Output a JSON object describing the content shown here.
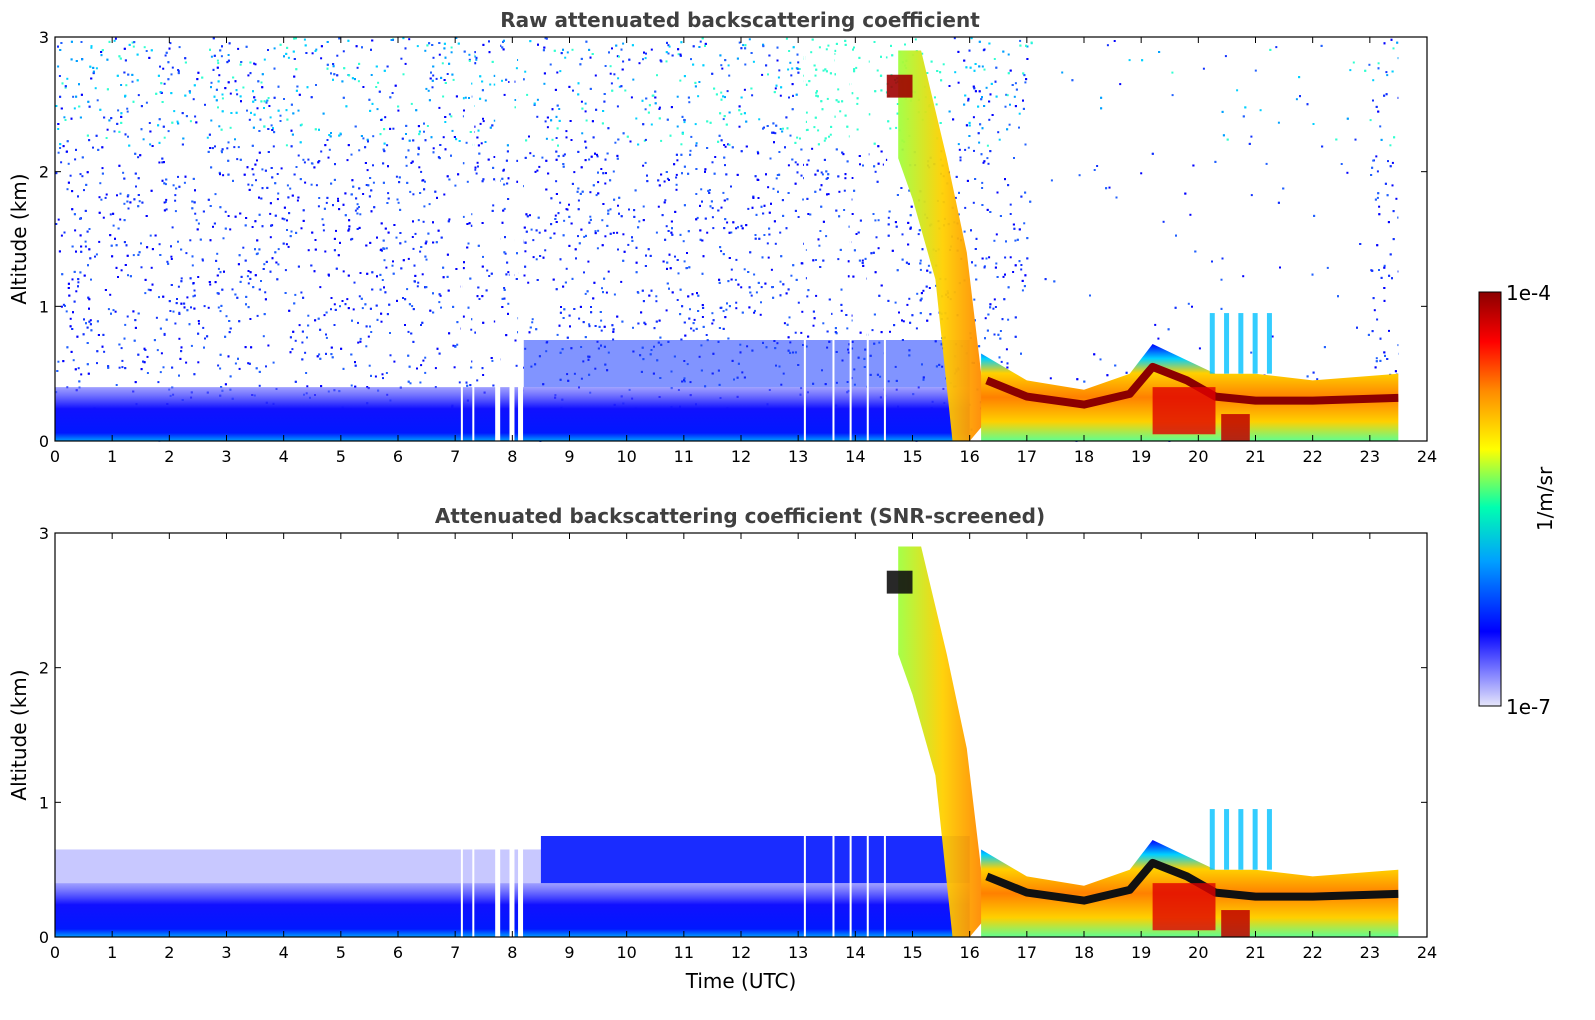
{
  "chart_data": [
    {
      "type": "heatmap",
      "title": "Raw attenuated backscattering coefficient",
      "xlabel": "",
      "ylabel": "Altitude (km)",
      "xlim": [
        0,
        24
      ],
      "ylim": [
        0,
        3
      ],
      "x_ticks": [
        "0",
        "1",
        "2",
        "3",
        "4",
        "5",
        "6",
        "7",
        "8",
        "9",
        "10",
        "11",
        "12",
        "13",
        "14",
        "15",
        "16",
        "17",
        "18",
        "19",
        "20",
        "21",
        "22",
        "23",
        "24"
      ],
      "y_ticks": [
        "0",
        "1",
        "2",
        "3"
      ],
      "features": [
        {
          "desc": "noise-dominated signal, sparse dots up to 3 km",
          "x_range": [
            0,
            23.5
          ],
          "y_range": [
            0,
            3
          ]
        },
        {
          "desc": "boundary layer (dense blue)",
          "x_range": [
            0,
            16
          ],
          "y_range": [
            0,
            0.4
          ]
        },
        {
          "desc": "data gaps",
          "x": [
            7.1,
            7.3,
            7.7,
            7.95,
            8.1
          ]
        },
        {
          "desc": "elevated aerosol/cloud layer descending",
          "x_range": [
            14.7,
            16.3
          ],
          "y_range": [
            0,
            3
          ]
        },
        {
          "desc": "strong layer top near 0.3 km",
          "x_range": [
            16.2,
            23.5
          ],
          "y_range": [
            0.2,
            0.5
          ]
        }
      ]
    },
    {
      "type": "heatmap",
      "title": "Attenuated backscattering coefficient (SNR-screened)",
      "xlabel": "Time (UTC)",
      "ylabel": "Altitude (km)",
      "xlim": [
        0,
        24
      ],
      "ylim": [
        0,
        3
      ],
      "x_ticks": [
        "0",
        "1",
        "2",
        "3",
        "4",
        "5",
        "6",
        "7",
        "8",
        "9",
        "10",
        "11",
        "12",
        "13",
        "14",
        "15",
        "16",
        "17",
        "18",
        "19",
        "20",
        "21",
        "22",
        "23",
        "24"
      ],
      "y_ticks": [
        "0",
        "1",
        "2",
        "3"
      ],
      "features": [
        {
          "desc": "boundary layer after screening",
          "x_range": [
            0,
            16
          ],
          "y_range": [
            0,
            0.8
          ]
        },
        {
          "desc": "elevated aerosol/cloud layer descending",
          "x_range": [
            14.7,
            16.3
          ],
          "y_range": [
            0,
            2.9
          ]
        },
        {
          "desc": "strong layer top near 0.3 km",
          "x_range": [
            16.2,
            23.5
          ],
          "y_range": [
            0.2,
            0.5
          ]
        }
      ]
    }
  ],
  "colorbar": {
    "label": "1/m/sr",
    "max_label": "1e-4",
    "min_label": "1e-7",
    "scale": "log",
    "range": [
      1e-07,
      0.0001
    ],
    "colormap": "jet",
    "stops": [
      "#e6e6fa",
      "#0000ff",
      "#00bfff",
      "#00ffa0",
      "#ffff00",
      "#ff8000",
      "#ff0000",
      "#8b0000"
    ]
  }
}
